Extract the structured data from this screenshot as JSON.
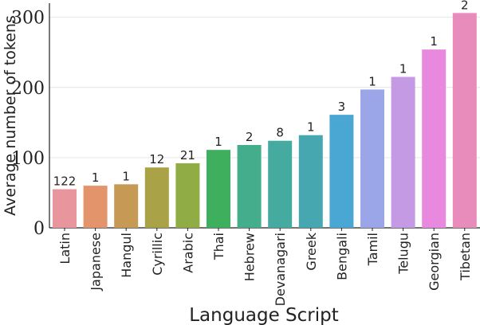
{
  "chart_data": {
    "type": "bar",
    "xlabel": "Language Script",
    "ylabel": "Average number of tokens",
    "ylim": [
      0,
      320
    ],
    "yticks": [
      0,
      100,
      200,
      300
    ],
    "grid": true,
    "categories": [
      "Latin",
      "Japanese",
      "Hangul",
      "Cyrillic",
      "Arabic",
      "Thai",
      "Hebrew",
      "Devanagari",
      "Greek",
      "Bengali",
      "Tamil",
      "Telugu",
      "Georgian",
      "Tibetan"
    ],
    "values": [
      55,
      60,
      62,
      86,
      92,
      111,
      118,
      124,
      132,
      161,
      197,
      215,
      254,
      306
    ],
    "bar_labels": [
      "122",
      "1",
      "1",
      "12",
      "21",
      "1",
      "2",
      "8",
      "1",
      "3",
      "1",
      "1",
      "1",
      "2"
    ],
    "colors": [
      "#e8959d",
      "#e3946a",
      "#c69a55",
      "#a9a247",
      "#8fac45",
      "#3daf5d",
      "#43ad8c",
      "#45aa9f",
      "#47a7b1",
      "#4aa6d2",
      "#9aa6e8",
      "#c59ae4",
      "#e888de",
      "#e88cbc"
    ]
  }
}
